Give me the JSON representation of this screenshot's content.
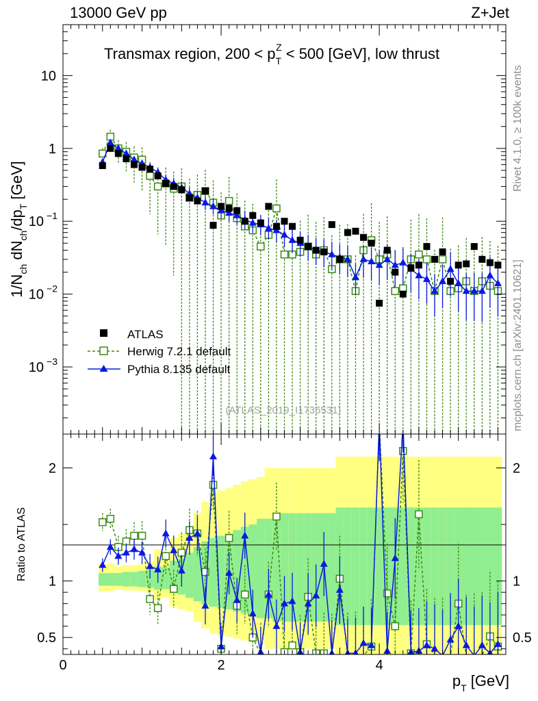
{
  "header": {
    "energy_label": "13000 GeV pp",
    "process_label": "Z+Jet"
  },
  "side_labels": {
    "rivet": "Rivet 4.1.0, ≥ 100k events",
    "mcplots": "mcplots.cern.ch [arXiv:2401.10621]"
  },
  "colors": {
    "atlas": "#000000",
    "herwig": "#3a8a12",
    "pythia": "#0a1ae0",
    "band_yellow": "#ffff80",
    "band_green": "#90ee90"
  },
  "chart_data": [
    {
      "type": "line",
      "panel": "main",
      "title": "Transmax region, 200 < p_T^Z < 500 [GeV], low thrust",
      "title_parts": {
        "pre": "Transmax region, 200 < p",
        "sub": "T",
        "sup": "Z",
        "post": " < 500 [GeV], low thrust"
      },
      "ylabel": "1/N_ch dN_ch/dp_T [GeV]",
      "ylabel_parts": {
        "a": "1/N",
        "a_sub": "ch",
        "b": " dN",
        "b_sub": "ch",
        "c": "/dp",
        "c_sub": "T",
        "d": " [GeV]"
      },
      "yscale": "log",
      "ylim": [
        0.00012,
        50
      ],
      "xlim": [
        0,
        5.6
      ],
      "ytick_labels": [
        "10",
        "1",
        "10^-1",
        "10^-2",
        "10^-3"
      ],
      "ytick_parts": [
        {
          "base": "10",
          "exp": ""
        },
        {
          "base": "1",
          "exp": ""
        },
        {
          "base": "10",
          "exp": "−1"
        },
        {
          "base": "10",
          "exp": "−2"
        },
        {
          "base": "10",
          "exp": "−3"
        }
      ],
      "ytick_values": [
        10,
        1,
        0.1,
        0.01,
        0.001
      ],
      "reference_label": "(ATLAS_2019_I1736531)",
      "legend": [
        "ATLAS",
        "Herwig 7.2.1 default",
        "Pythia 8.135 default"
      ],
      "legend_placement": "lower-left",
      "x": [
        0.5,
        0.6,
        0.7,
        0.8,
        0.9,
        1.0,
        1.1,
        1.2,
        1.3,
        1.4,
        1.5,
        1.6,
        1.7,
        1.8,
        1.9,
        2.0,
        2.1,
        2.2,
        2.3,
        2.4,
        2.5,
        2.6,
        2.7,
        2.8,
        2.9,
        3.0,
        3.1,
        3.2,
        3.3,
        3.4,
        3.5,
        3.6,
        3.7,
        3.8,
        3.9,
        4.0,
        4.1,
        4.2,
        4.3,
        4.4,
        4.5,
        4.6,
        4.7,
        4.8,
        4.9,
        5.0,
        5.1,
        5.2,
        5.3,
        5.4,
        5.5
      ],
      "series": [
        {
          "name": "ATLAS",
          "marker": "square-filled",
          "values": [
            0.58,
            1.0,
            0.85,
            0.72,
            0.6,
            0.55,
            0.52,
            0.42,
            0.33,
            0.3,
            0.27,
            0.21,
            0.19,
            0.26,
            0.088,
            0.16,
            0.15,
            0.14,
            0.1,
            0.12,
            0.095,
            0.16,
            0.085,
            0.1,
            0.085,
            0.055,
            0.045,
            0.04,
            0.038,
            0.09,
            0.03,
            0.07,
            0.073,
            0.06,
            0.05,
            0.0075,
            0.04,
            0.02,
            0.01,
            0.023,
            0.025,
            0.045,
            0.03,
            0.038,
            0.015,
            0.025,
            0.026,
            0.045,
            0.03,
            0.027,
            0.025
          ]
        },
        {
          "name": "Herwig 7.2.1 default",
          "marker": "square-open",
          "values": [
            0.85,
            1.45,
            1.0,
            0.9,
            0.75,
            0.7,
            0.42,
            0.3,
            0.33,
            0.28,
            0.3,
            0.21,
            0.23,
            0.26,
            0.18,
            0.12,
            0.19,
            0.11,
            0.085,
            0.075,
            0.045,
            0.065,
            0.15,
            0.035,
            0.035,
            0.038,
            0.045,
            0.035,
            0.04,
            0.022,
            0.03,
            0.03,
            0.011,
            0.04,
            0.055,
            0.03,
            0.035,
            0.011,
            0.012,
            0.03,
            0.035,
            0.03,
            0.011,
            0.03,
            0.011,
            0.012,
            0.015,
            0.011,
            0.015,
            0.013,
            0.011
          ]
        },
        {
          "name": "Pythia 8.135 default",
          "marker": "triangle-filled",
          "values": [
            0.65,
            1.2,
            1.0,
            0.85,
            0.7,
            0.62,
            0.55,
            0.47,
            0.37,
            0.33,
            0.29,
            0.24,
            0.21,
            0.18,
            0.16,
            0.14,
            0.13,
            0.12,
            0.105,
            0.095,
            0.09,
            0.08,
            0.075,
            0.065,
            0.055,
            0.05,
            0.045,
            0.04,
            0.038,
            0.035,
            0.032,
            0.03,
            0.017,
            0.03,
            0.028,
            0.025,
            0.03,
            0.025,
            0.027,
            0.022,
            0.018,
            0.016,
            0.011,
            0.015,
            0.022,
            0.014,
            0.011,
            0.011,
            0.011,
            0.018,
            0.014
          ]
        }
      ]
    },
    {
      "type": "line",
      "panel": "ratio",
      "ylabel": "Ratio to ATLAS",
      "xlabel": "p_T [GeV]",
      "xlabel_parts": {
        "pre": "p",
        "sub": "T",
        "post": " [GeV]"
      },
      "xlim": [
        0,
        5.6
      ],
      "ylim": [
        0.35,
        2.3
      ],
      "xtick_labels": [
        "0",
        "2",
        "4"
      ],
      "xtick_values": [
        0,
        2,
        4
      ],
      "ytick_labels": [
        "2",
        "1",
        "0.5"
      ],
      "ytick_values": [
        2,
        1,
        0.5
      ],
      "x": [
        0.5,
        0.6,
        0.7,
        0.8,
        0.9,
        1.0,
        1.1,
        1.2,
        1.3,
        1.4,
        1.5,
        1.6,
        1.7,
        1.8,
        1.9,
        2.0,
        2.1,
        2.2,
        2.3,
        2.4,
        2.5,
        2.6,
        2.7,
        2.8,
        2.9,
        3.0,
        3.1,
        3.2,
        3.3,
        3.4,
        3.5,
        3.6,
        3.7,
        3.8,
        3.9,
        4.0,
        4.1,
        4.2,
        4.3,
        4.4,
        4.5,
        4.6,
        4.7,
        4.8,
        4.9,
        5.0,
        5.1,
        5.2,
        5.3,
        5.4,
        5.5
      ],
      "band_stat_sys_yellow": [
        0.15,
        0.15,
        0.13,
        0.14,
        0.14,
        0.15,
        0.17,
        0.28,
        0.24,
        0.38,
        0.42,
        0.45,
        0.6,
        0.7,
        0.78,
        0.8,
        0.82,
        0.85,
        0.88,
        0.9,
        0.92,
        1.0,
        1.0,
        1.0,
        1.0,
        1.0,
        1.0,
        1.0,
        1.0,
        1.0,
        1.1,
        1.1,
        1.1,
        1.1,
        1.1,
        1.1,
        1.1,
        1.1,
        1.1,
        1.1,
        1.1,
        1.1,
        1.1,
        1.1,
        1.1,
        1.1,
        1.1,
        1.1,
        1.1,
        1.1,
        1.1
      ],
      "band_stat_green": [
        0.07,
        0.07,
        0.07,
        0.08,
        0.08,
        0.09,
        0.1,
        0.13,
        0.12,
        0.18,
        0.2,
        0.25,
        0.3,
        0.35,
        0.38,
        0.4,
        0.42,
        0.45,
        0.48,
        0.5,
        0.55,
        0.55,
        0.6,
        0.6,
        0.6,
        0.6,
        0.6,
        0.6,
        0.6,
        0.6,
        0.65,
        0.65,
        0.65,
        0.65,
        0.65,
        0.65,
        0.65,
        0.65,
        0.65,
        0.65,
        0.65,
        0.65,
        0.65,
        0.65,
        0.65,
        0.65,
        0.65,
        0.65,
        0.65,
        0.65,
        0.65
      ],
      "series": [
        {
          "name": "Herwig 7.2.1 default",
          "values": [
            1.52,
            1.55,
            1.3,
            1.35,
            1.4,
            1.4,
            0.84,
            0.76,
            1.22,
            0.93,
            1.25,
            1.45,
            1.42,
            1.08,
            1.85,
            0.4,
            1.38,
            0.78,
            0.88,
            0.5,
            0.35,
            0.88,
            1.57,
            0.37,
            0.43,
            0.37,
            0.86,
            0.36,
            0.36,
            0.34,
            1.02,
            0.33,
            0.33,
            0.34,
            0.42,
            2.5,
            0.89,
            0.6,
            2.15,
            0.36,
            1.59,
            0.44,
            0.35,
            0.34,
            0.34,
            0.8,
            0.34,
            0.34,
            0.34,
            0.51,
            0.42
          ]
        },
        {
          "name": "Pythia 8.135 default",
          "values": [
            1.14,
            1.3,
            1.22,
            1.25,
            1.28,
            1.25,
            1.13,
            1.1,
            1.42,
            1.27,
            1.09,
            1.38,
            1.42,
            0.78,
            2.1,
            0.42,
            1.07,
            0.83,
            1.4,
            0.71,
            0.37,
            0.88,
            0.6,
            0.8,
            0.82,
            0.37,
            0.8,
            0.87,
            1.15,
            0.36,
            0.92,
            0.36,
            0.36,
            0.45,
            0.43,
            2.4,
            0.38,
            1.2,
            2.5,
            0.37,
            0.38,
            0.43,
            0.4,
            0.34,
            0.48,
            0.6,
            0.43,
            0.34,
            0.43,
            0.36,
            0.44
          ]
        }
      ]
    }
  ]
}
